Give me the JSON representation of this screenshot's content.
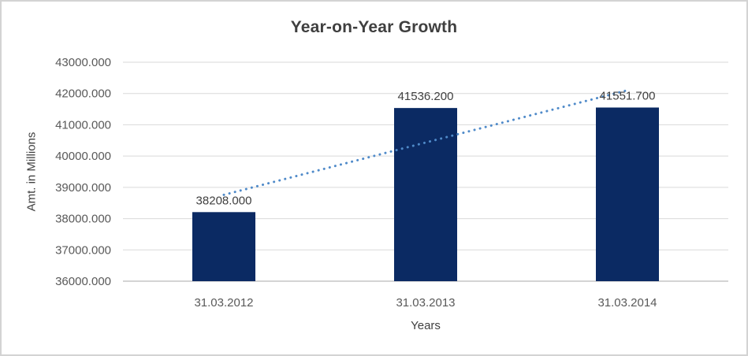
{
  "frame": {
    "background": "#ffffff",
    "border_color": "#d3d3d3"
  },
  "chart_data": {
    "type": "bar",
    "title": "Year-on-Year Growth",
    "xlabel": "Years",
    "ylabel": "Amt. in Millions",
    "categories": [
      "31.03.2012",
      "31.03.2013",
      "31.03.2014"
    ],
    "values": [
      38208.0,
      41536.2,
      41551.7
    ],
    "data_labels": [
      "38208.000",
      "41536.200",
      "41551.700"
    ],
    "ylim": [
      36000,
      43000
    ],
    "ytick_step": 1000,
    "ytick_labels": [
      "36000.000",
      "37000.000",
      "38000.000",
      "39000.000",
      "40000.000",
      "41000.000",
      "42000.000",
      "43000.000"
    ],
    "grid": true,
    "legend": "none",
    "trendline": {
      "type": "linear",
      "style": "dotted"
    },
    "colors": {
      "bar": "#0b2a63",
      "trendline": "#4f8ac9",
      "grid": "#d9d9d9",
      "axis": "#c6c6c6",
      "title": "#3f3f3f",
      "tick": "#595959",
      "data_label": "#404040",
      "axis_title": "#404040"
    }
  }
}
